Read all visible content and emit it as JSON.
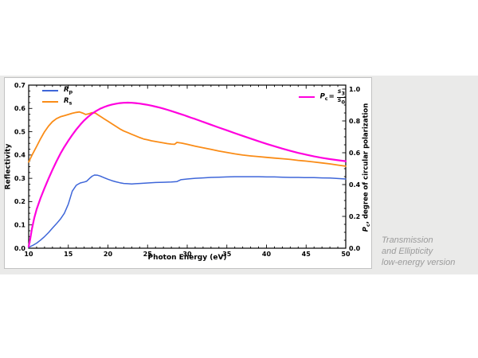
{
  "caption": {
    "lines": [
      "Transmission",
      "and Ellipticity",
      "low-energy version"
    ]
  },
  "chart_data": {
    "type": "line",
    "title": "",
    "xlabel": "Photon Energy (eV)",
    "ylabel_left": "Reflectivity",
    "ylabel_right_parts": {
      "symbol": "P",
      "sub": "c",
      "rest": ", degree of circular polarization"
    },
    "grid": false,
    "legend_position": {
      "reflectivity": "upper left",
      "polarization": "upper right"
    },
    "axes": {
      "x": {
        "min": 10,
        "max": 50,
        "major_ticks": [
          10,
          15,
          20,
          25,
          30,
          35,
          40,
          45,
          50
        ],
        "minor_step": 1
      },
      "y_left": {
        "min": 0,
        "max": 0.7,
        "major_ticks": [
          0.0,
          0.1,
          0.2,
          0.3,
          0.4,
          0.5,
          0.6,
          0.7
        ],
        "minor_step": 0.025
      },
      "y_right": {
        "min": 0,
        "max": 1.025,
        "major_ticks": [
          0.0,
          0.2,
          0.4,
          0.6,
          0.8,
          1.0
        ],
        "minor_step": 0.05
      }
    },
    "legend": [
      {
        "symbol": "R",
        "sub": "p",
        "color": "#3E66D9"
      },
      {
        "symbol": "R",
        "sub": "s",
        "color": "#FA8C17"
      },
      {
        "symbol": "P",
        "sub": "c",
        "eq": "=",
        "num_symbol": "S",
        "num_sub": "3",
        "den_symbol": "S",
        "den_sub": "0",
        "color": "#FF00DE"
      }
    ],
    "series": [
      {
        "name": "Rp",
        "axis": "left",
        "color": "#3E66D9",
        "width": 1.5,
        "points": [
          [
            10,
            0.004
          ],
          [
            10.5,
            0.012
          ],
          [
            11,
            0.022
          ],
          [
            11.5,
            0.035
          ],
          [
            12,
            0.05
          ],
          [
            12.5,
            0.067
          ],
          [
            13,
            0.086
          ],
          [
            13.5,
            0.105
          ],
          [
            14,
            0.125
          ],
          [
            14.5,
            0.15
          ],
          [
            15,
            0.19
          ],
          [
            15.5,
            0.245
          ],
          [
            16,
            0.27
          ],
          [
            16.5,
            0.28
          ],
          [
            17,
            0.284
          ],
          [
            17.3,
            0.287
          ],
          [
            17.7,
            0.3
          ],
          [
            18,
            0.309
          ],
          [
            18.3,
            0.314
          ],
          [
            18.7,
            0.313
          ],
          [
            19,
            0.31
          ],
          [
            19.5,
            0.303
          ],
          [
            20,
            0.296
          ],
          [
            20.5,
            0.29
          ],
          [
            21,
            0.285
          ],
          [
            21.5,
            0.281
          ],
          [
            22,
            0.278
          ],
          [
            22.5,
            0.277
          ],
          [
            23,
            0.276
          ],
          [
            23.5,
            0.277
          ],
          [
            24,
            0.278
          ],
          [
            25,
            0.28
          ],
          [
            26,
            0.282
          ],
          [
            27,
            0.283
          ],
          [
            28,
            0.284
          ],
          [
            28.7,
            0.286
          ],
          [
            29.2,
            0.294
          ],
          [
            30,
            0.297
          ],
          [
            31,
            0.3
          ],
          [
            32,
            0.302
          ],
          [
            33,
            0.304
          ],
          [
            34,
            0.305
          ],
          [
            35,
            0.306
          ],
          [
            36,
            0.307
          ],
          [
            37,
            0.307
          ],
          [
            38,
            0.307
          ],
          [
            39,
            0.307
          ],
          [
            40,
            0.306
          ],
          [
            41,
            0.306
          ],
          [
            42,
            0.305
          ],
          [
            43,
            0.304
          ],
          [
            44,
            0.304
          ],
          [
            45,
            0.303
          ],
          [
            46,
            0.303
          ],
          [
            47,
            0.302
          ],
          [
            48,
            0.301
          ],
          [
            49,
            0.299
          ],
          [
            50,
            0.297
          ]
        ]
      },
      {
        "name": "Rs",
        "axis": "left",
        "color": "#FA8C17",
        "width": 1.8,
        "points": [
          [
            10,
            0.37
          ],
          [
            10.5,
            0.405
          ],
          [
            11,
            0.437
          ],
          [
            11.5,
            0.47
          ],
          [
            12,
            0.5
          ],
          [
            12.5,
            0.524
          ],
          [
            13,
            0.543
          ],
          [
            13.5,
            0.556
          ],
          [
            14,
            0.564
          ],
          [
            14.5,
            0.569
          ],
          [
            15,
            0.574
          ],
          [
            15.5,
            0.579
          ],
          [
            16,
            0.583
          ],
          [
            16.4,
            0.585
          ],
          [
            16.8,
            0.58
          ],
          [
            17.2,
            0.574
          ],
          [
            17.6,
            0.577
          ],
          [
            18,
            0.582
          ],
          [
            18.4,
            0.58
          ],
          [
            19,
            0.567
          ],
          [
            19.5,
            0.556
          ],
          [
            20,
            0.545
          ],
          [
            20.5,
            0.534
          ],
          [
            21,
            0.523
          ],
          [
            21.6,
            0.51
          ],
          [
            22,
            0.503
          ],
          [
            22.5,
            0.496
          ],
          [
            23,
            0.489
          ],
          [
            23.5,
            0.482
          ],
          [
            24,
            0.475
          ],
          [
            24.5,
            0.469
          ],
          [
            25,
            0.465
          ],
          [
            25.5,
            0.461
          ],
          [
            26,
            0.458
          ],
          [
            26.5,
            0.455
          ],
          [
            27,
            0.452
          ],
          [
            27.5,
            0.449
          ],
          [
            28,
            0.447
          ],
          [
            28.4,
            0.446
          ],
          [
            28.7,
            0.454
          ],
          [
            29.3,
            0.451
          ],
          [
            30,
            0.446
          ],
          [
            31,
            0.438
          ],
          [
            32,
            0.431
          ],
          [
            33,
            0.424
          ],
          [
            34,
            0.417
          ],
          [
            35,
            0.411
          ],
          [
            36,
            0.405
          ],
          [
            37,
            0.4
          ],
          [
            38,
            0.396
          ],
          [
            39,
            0.393
          ],
          [
            40,
            0.39
          ],
          [
            41,
            0.387
          ],
          [
            42,
            0.384
          ],
          [
            43,
            0.381
          ],
          [
            44,
            0.377
          ],
          [
            45,
            0.374
          ],
          [
            46,
            0.37
          ],
          [
            47,
            0.366
          ],
          [
            48,
            0.362
          ],
          [
            49,
            0.357
          ],
          [
            50,
            0.352
          ]
        ]
      },
      {
        "name": "Pc",
        "axis": "right",
        "color": "#FF00DE",
        "width": 2.2,
        "points": [
          [
            10,
            0.01
          ],
          [
            10.2,
            0.06
          ],
          [
            10.4,
            0.12
          ],
          [
            10.7,
            0.19
          ],
          [
            11,
            0.245
          ],
          [
            11.5,
            0.315
          ],
          [
            12,
            0.378
          ],
          [
            12.5,
            0.437
          ],
          [
            13,
            0.492
          ],
          [
            13.5,
            0.545
          ],
          [
            14,
            0.594
          ],
          [
            14.5,
            0.637
          ],
          [
            15,
            0.676
          ],
          [
            15.5,
            0.712
          ],
          [
            16,
            0.746
          ],
          [
            16.5,
            0.776
          ],
          [
            17,
            0.803
          ],
          [
            17.5,
            0.826
          ],
          [
            18,
            0.846
          ],
          [
            18.5,
            0.862
          ],
          [
            19,
            0.876
          ],
          [
            19.5,
            0.887
          ],
          [
            20,
            0.896
          ],
          [
            20.5,
            0.903
          ],
          [
            21,
            0.908
          ],
          [
            21.5,
            0.912
          ],
          [
            22,
            0.914
          ],
          [
            22.5,
            0.915
          ],
          [
            23,
            0.914
          ],
          [
            23.5,
            0.912
          ],
          [
            24,
            0.909
          ],
          [
            24.5,
            0.905
          ],
          [
            25,
            0.901
          ],
          [
            25.5,
            0.896
          ],
          [
            26,
            0.89
          ],
          [
            26.5,
            0.884
          ],
          [
            27,
            0.877
          ],
          [
            27.5,
            0.87
          ],
          [
            28,
            0.862
          ],
          [
            28.5,
            0.854
          ],
          [
            29,
            0.846
          ],
          [
            29.5,
            0.838
          ],
          [
            30,
            0.829
          ],
          [
            30.5,
            0.82
          ],
          [
            31,
            0.812
          ],
          [
            31.5,
            0.803
          ],
          [
            32,
            0.794
          ],
          [
            33,
            0.776
          ],
          [
            34,
            0.758
          ],
          [
            35,
            0.741
          ],
          [
            36,
            0.723
          ],
          [
            37,
            0.706
          ],
          [
            38,
            0.689
          ],
          [
            39,
            0.672
          ],
          [
            40,
            0.656
          ],
          [
            41,
            0.641
          ],
          [
            42,
            0.626
          ],
          [
            43,
            0.612
          ],
          [
            44,
            0.599
          ],
          [
            45,
            0.588
          ],
          [
            46,
            0.577
          ],
          [
            47,
            0.568
          ],
          [
            48,
            0.56
          ],
          [
            49,
            0.553
          ],
          [
            50,
            0.547
          ]
        ]
      }
    ]
  }
}
